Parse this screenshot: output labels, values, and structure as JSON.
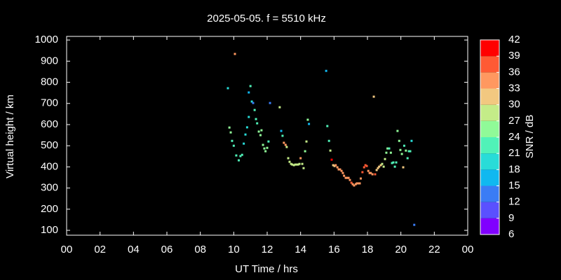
{
  "chart_data": {
    "type": "scatter",
    "title": "2025-05-05. f = 5510 kHz",
    "xlabel": "UT Time / hrs",
    "ylabel": "Virtual height / km",
    "colorbar_label": "SNR / dB",
    "xlim": [
      0,
      24
    ],
    "xticks": [
      {
        "value": 0,
        "label": "00"
      },
      {
        "value": 2,
        "label": "02"
      },
      {
        "value": 4,
        "label": "04"
      },
      {
        "value": 6,
        "label": "06"
      },
      {
        "value": 8,
        "label": "08"
      },
      10,
      12,
      14,
      16,
      18,
      20,
      22,
      {
        "value": 24,
        "label": "00"
      }
    ],
    "ylim": [
      77,
      1017
    ],
    "yticks": [
      100,
      200,
      300,
      400,
      500,
      600,
      700,
      800,
      900,
      1000
    ],
    "zlim": [
      6,
      42
    ],
    "zticks": [
      6,
      9,
      12,
      15,
      18,
      21,
      24,
      27,
      30,
      33,
      36,
      39,
      42
    ],
    "colorscale": [
      "#8000ff",
      "#5a50ff",
      "#3a7cf5",
      "#10b8f0",
      "#28dcd8",
      "#50f2b8",
      "#90fa98",
      "#c4ec88",
      "#f2c880",
      "#ff9860",
      "#ff5a34",
      "#ff0000"
    ],
    "x": [
      9.65,
      10.07,
      9.74,
      9.82,
      9.9,
      10.0,
      10.15,
      10.3,
      10.4,
      10.5,
      10.6,
      10.7,
      10.8,
      10.9,
      10.9,
      11.0,
      11.08,
      11.16,
      11.25,
      11.33,
      11.4,
      11.5,
      11.6,
      11.66,
      11.75,
      11.83,
      11.9,
      12.0,
      12.08,
      12.17,
      12.75,
      12.84,
      12.92,
      13.0,
      13.1,
      13.17,
      13.26,
      13.34,
      13.43,
      13.5,
      13.6,
      13.68,
      13.76,
      13.85,
      13.93,
      14.0,
      14.1,
      14.18,
      14.27,
      14.35,
      14.43,
      14.5,
      15.53,
      15.6,
      15.7,
      15.78,
      15.86,
      15.95,
      16.03,
      16.1,
      16.2,
      16.28,
      16.36,
      16.45,
      16.53,
      16.6,
      16.7,
      16.78,
      16.87,
      16.95,
      17.04,
      17.12,
      17.2,
      17.3,
      17.37,
      17.46,
      17.54,
      17.6,
      17.7,
      17.8,
      17.88,
      17.96,
      18.05,
      18.13,
      18.2,
      18.3,
      18.38,
      18.46,
      18.55,
      18.63,
      18.7,
      18.8,
      18.88,
      18.97,
      19.05,
      19.13,
      19.2,
      19.3,
      19.4,
      19.47,
      19.55,
      19.64,
      19.72,
      19.8,
      19.9,
      19.97,
      20.06,
      20.14,
      20.2,
      20.3,
      20.4,
      20.48,
      20.56,
      20.64,
      20.8
    ],
    "y": [
      772,
      934,
      586,
      563,
      523,
      500,
      454,
      431,
      451,
      457,
      510,
      553,
      587,
      636,
      752,
      782,
      709,
      702,
      669,
      626,
      606,
      567,
      550,
      573,
      504,
      487,
      474,
      490,
      520,
      702,
      682,
      570,
      547,
      514,
      504,
      494,
      441,
      424,
      414,
      411,
      408,
      411,
      411,
      411,
      414,
      441,
      414,
      394,
      474,
      520,
      623,
      603,
      854,
      593,
      523,
      477,
      434,
      408,
      404,
      408,
      398,
      388,
      388,
      381,
      371,
      358,
      348,
      348,
      348,
      338,
      325,
      318,
      312,
      318,
      322,
      322,
      322,
      345,
      375,
      398,
      408,
      404,
      381,
      371,
      371,
      365,
      732,
      365,
      385,
      394,
      401,
      408,
      414,
      401,
      437,
      467,
      487,
      487,
      467,
      418,
      421,
      401,
      421,
      570,
      523,
      480,
      461,
      398,
      500,
      477,
      441,
      474,
      474,
      523,
      126
    ],
    "snr": [
      20,
      33,
      24,
      24,
      21,
      21,
      21,
      21,
      21,
      21,
      18,
      18,
      18,
      18,
      15,
      21,
      18,
      12,
      21,
      21,
      21,
      24,
      24,
      24,
      24,
      24,
      24,
      24,
      21,
      12,
      27,
      15,
      21,
      33,
      33,
      27,
      27,
      27,
      27,
      27,
      27,
      27,
      27,
      27,
      27,
      33,
      27,
      27,
      24,
      27,
      24,
      15,
      15,
      21,
      21,
      27,
      39,
      30,
      30,
      33,
      33,
      33,
      33,
      33,
      33,
      33,
      33,
      33,
      33,
      33,
      36,
      33,
      33,
      33,
      33,
      33,
      33,
      33,
      36,
      36,
      36,
      36,
      33,
      33,
      33,
      33,
      30,
      36,
      30,
      30,
      30,
      30,
      27,
      27,
      27,
      24,
      24,
      21,
      24,
      21,
      21,
      21,
      21,
      24,
      24,
      24,
      24,
      30,
      21,
      24,
      21,
      21,
      21,
      18,
      12
    ]
  }
}
